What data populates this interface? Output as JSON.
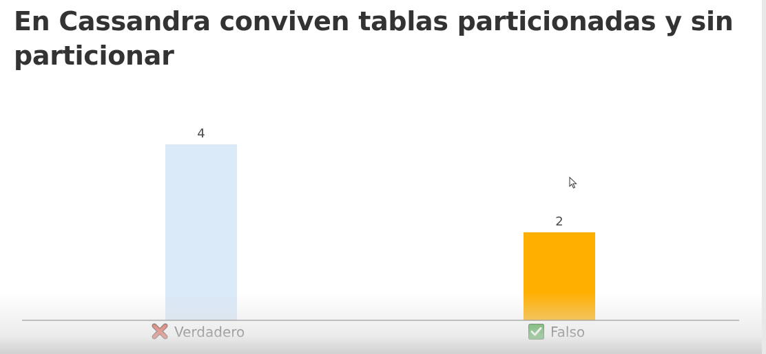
{
  "question": {
    "title": "En Cassandra conviven tablas particionadas y sin particionar"
  },
  "chart_data": {
    "type": "bar",
    "categories": [
      "Verdadero",
      "Falso"
    ],
    "values": [
      4,
      2
    ],
    "category_icons": [
      "red-cross-icon",
      "green-check-icon"
    ],
    "bar_colors": [
      "#d9e9f8",
      "#ffaf00"
    ],
    "ylim": [
      0,
      4
    ],
    "grid": false,
    "legend": "none"
  },
  "colors": {
    "title": "#333333",
    "axis": "#6e6e6e",
    "cross": "#e0412a",
    "check": "#2e9e2e"
  }
}
